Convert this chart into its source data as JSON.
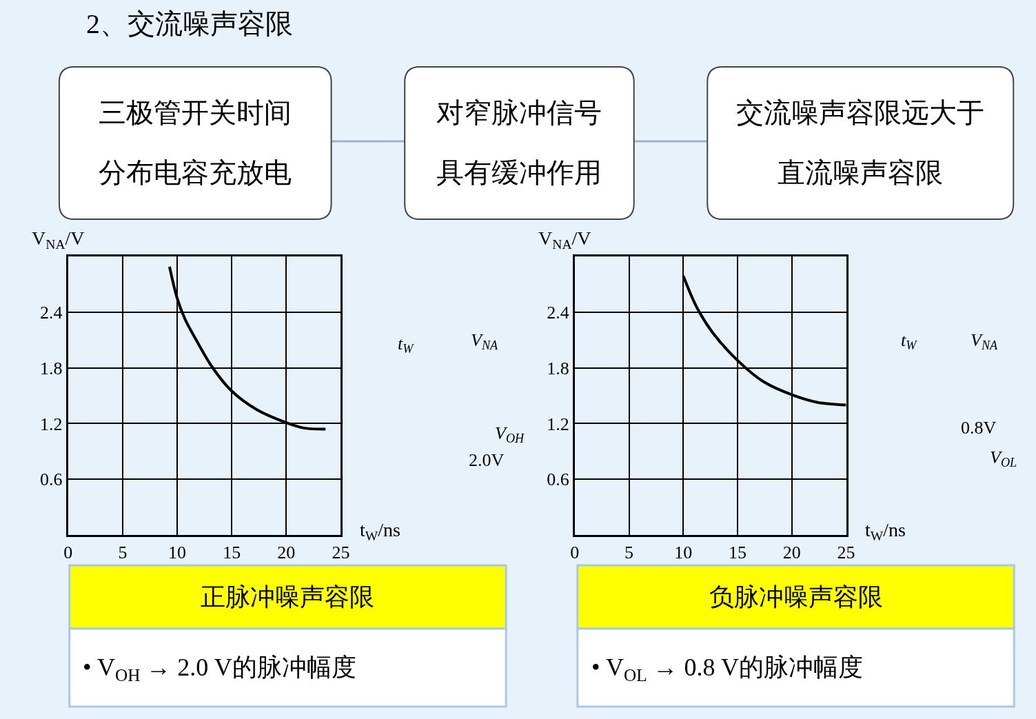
{
  "chart_data": [
    {
      "type": "other",
      "title": "2、交流噪声容限",
      "annotations": [
        "三极管开关时间",
        "分布电容充放电",
        "对窄脉冲信号",
        "具有缓冲作用",
        "交流噪声容限远大于",
        "直流噪声容限"
      ]
    },
    {
      "type": "line",
      "xlabel": "t$_{W}$/ns",
      "ylabel": "V$_{NA}$/V",
      "xlim": [
        0,
        25
      ],
      "ylim": [
        0,
        3.0
      ],
      "xticks": [
        0,
        5,
        10,
        15,
        20,
        25
      ],
      "yticks": [
        {
          "value": 0,
          "label": null
        },
        0.6,
        1.2,
        1.8,
        2.4
      ],
      "grid": true,
      "series": [
        {
          "color": "#000000",
          "x": [
            9.3,
            10,
            10.7,
            11.75,
            13.2,
            15,
            17.3,
            20,
            21.7,
            23.6
          ],
          "values": [
            2.89,
            2.55,
            2.33,
            2.1,
            1.81,
            1.55,
            1.35,
            1.21,
            1.15,
            1.14
          ]
        }
      ],
      "annotations": [
        "正脉冲噪声容限",
        "• V$_{OH}$ → 2.0 V的脉冲幅度",
        "t$_{W}$",
        "V$_{NA}$",
        "V$_{OH}$",
        "2.0V"
      ]
    },
    {
      "type": "line",
      "xlabel": "t$_{W}$/ns",
      "ylabel": "V$_{NA}$/V",
      "xlim": [
        0,
        25
      ],
      "ylim": [
        0,
        3.0
      ],
      "xticks": [
        0,
        5,
        10,
        15,
        20,
        25
      ],
      "yticks": [
        {
          "value": 0,
          "label": null
        },
        0.6,
        1.2,
        1.8,
        2.4
      ],
      "grid": true,
      "series": [
        {
          "color": "#000000",
          "x": [
            10,
            11.25,
            12.7,
            15,
            17.4,
            20,
            22.3,
            25
          ],
          "values": [
            2.79,
            2.45,
            2.18,
            1.88,
            1.65,
            1.51,
            1.43,
            1.4
          ]
        }
      ],
      "annotations": [
        "负脉冲噪声容限",
        "• V$_{OL}$ → 0.8 V的脉冲幅度",
        "t$_{W}$",
        "V$_{NA}$",
        "0.8V",
        "V$_{OL}$"
      ]
    }
  ]
}
